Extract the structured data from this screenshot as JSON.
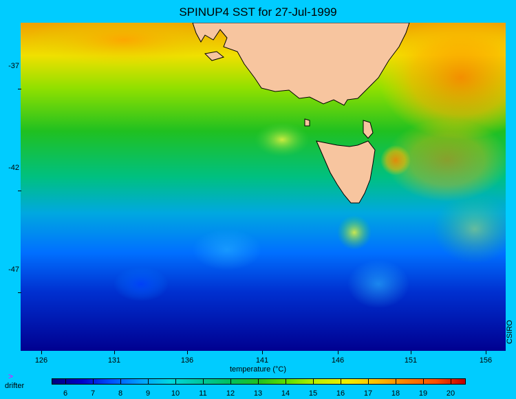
{
  "title": "SPINUP4 SST for 27-Jul-1999",
  "credit": "CSIRO",
  "y_axis": {
    "labels": [
      "-37",
      "-42",
      "-47"
    ]
  },
  "x_axis": {
    "labels": [
      "126",
      "131",
      "136",
      "141",
      "146",
      "151",
      "156"
    ]
  },
  "colorbar": {
    "title": "temperature (°C)",
    "ticks": [
      "6",
      "7",
      "8",
      "9",
      "10",
      "11",
      "12",
      "13",
      "14",
      "15",
      "16",
      "17",
      "18",
      "19",
      "20"
    ],
    "range": [
      5.5,
      20.5
    ],
    "colors": [
      "#00007f",
      "#0000c8",
      "#0050ff",
      "#00a0ff",
      "#00d8e0",
      "#00c8a0",
      "#00c060",
      "#20c020",
      "#60e000",
      "#c0f000",
      "#f0f000",
      "#ffc000",
      "#ff8000",
      "#ff5000",
      "#c00000"
    ]
  },
  "legend": {
    "drifter_label": "drifter",
    "drifter_color": "#ff00ff"
  },
  "colors": {
    "background": "#00ccff",
    "land": "#f7c59f"
  }
}
